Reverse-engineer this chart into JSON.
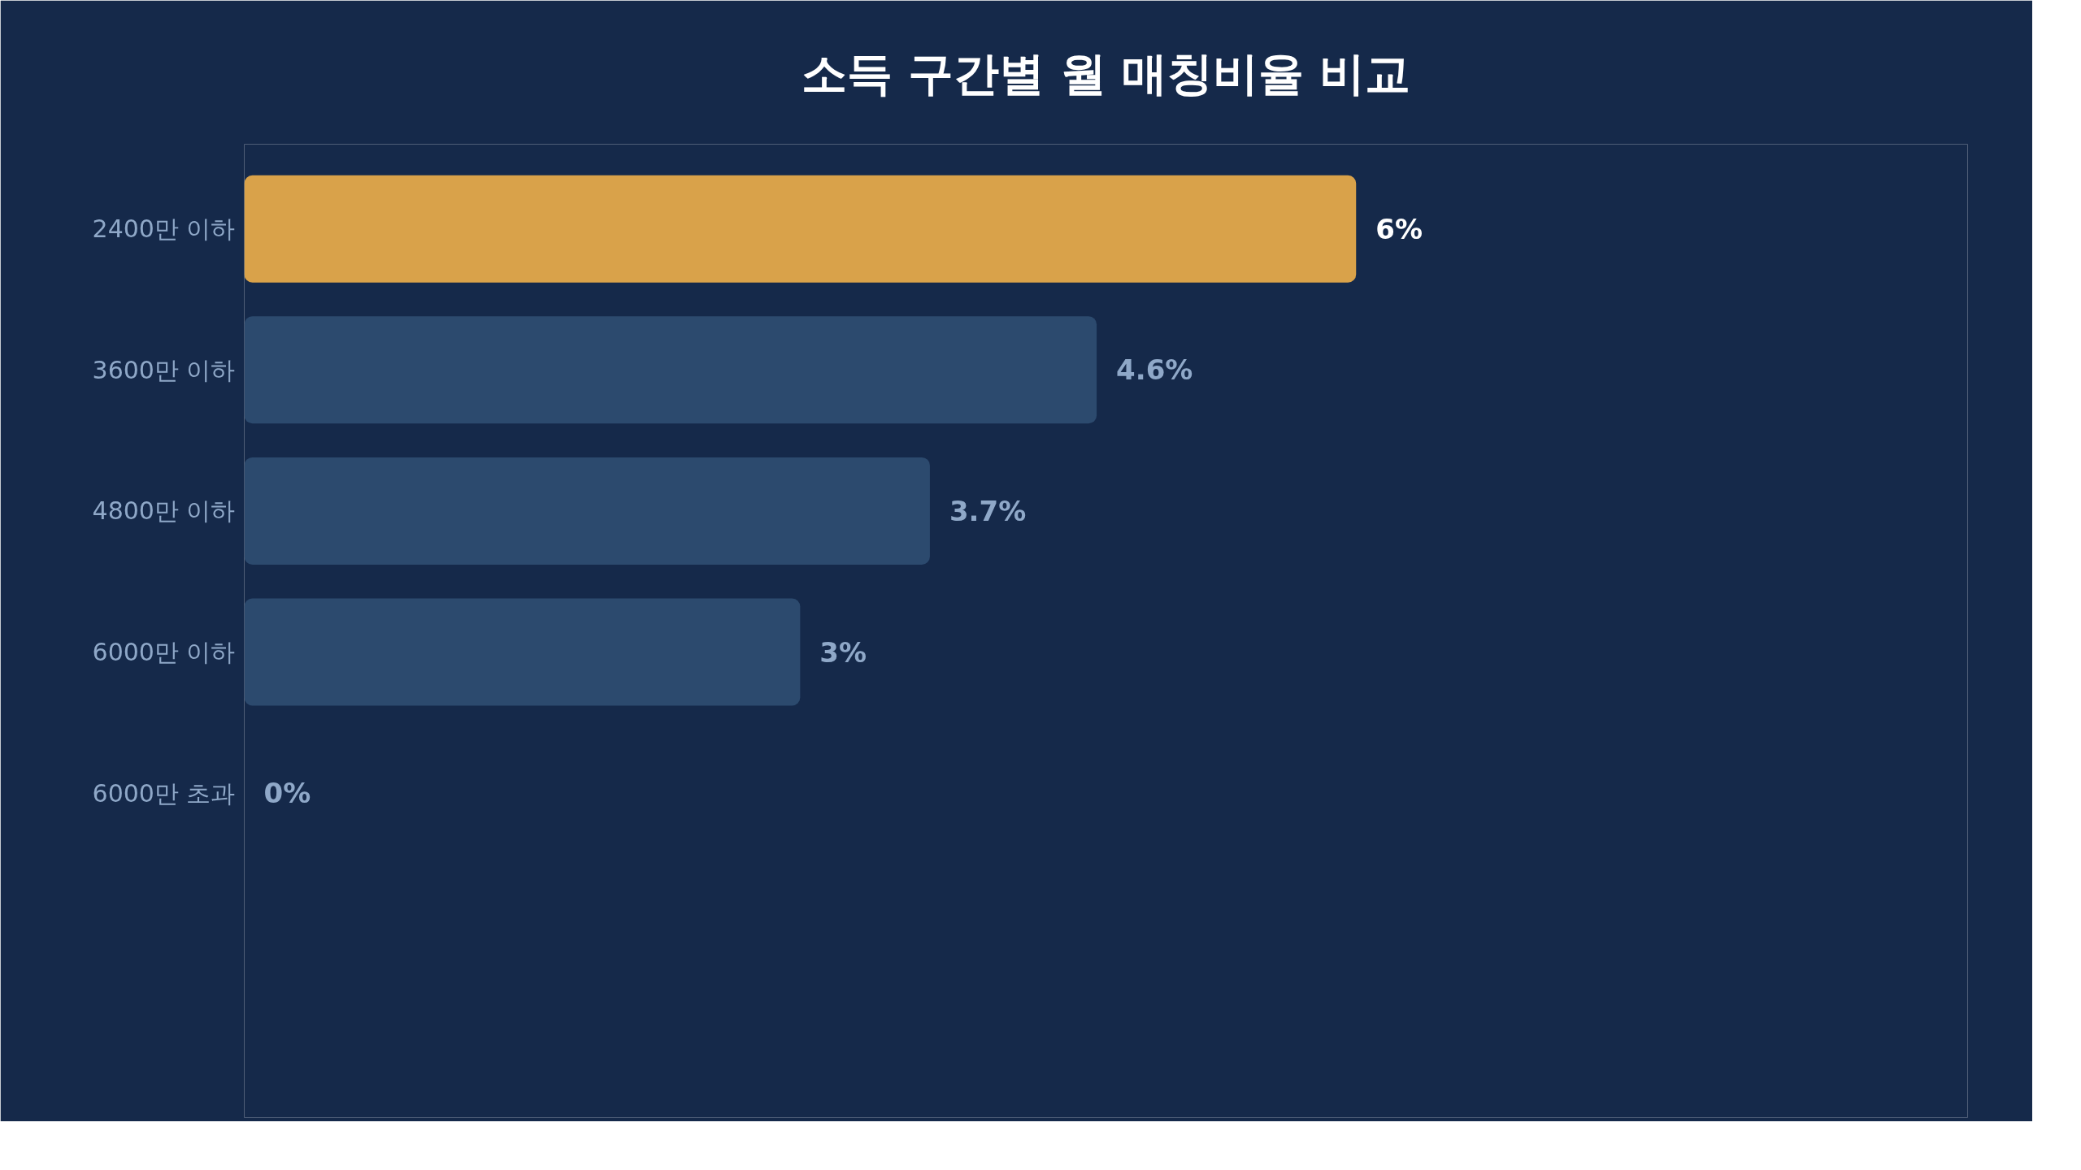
{
  "chart_data": {
    "type": "bar",
    "orientation": "horizontal",
    "title": "소득 구간별 월 매칭비율 비교",
    "categories": [
      "2400만 이하",
      "3600만 이하",
      "4800만 이하",
      "6000만 이하",
      "6000만 초과"
    ],
    "values": [
      6,
      4.6,
      3.7,
      3,
      0
    ],
    "value_labels": [
      "6%",
      "4.6%",
      "3.7%",
      "3%",
      "0%"
    ],
    "colors": [
      "#d9a24a",
      "#2c4a6e",
      "#2c4a6e",
      "#2c4a6e",
      "#2c4a6e"
    ],
    "grid": false,
    "tick_labels": "y"
  }
}
